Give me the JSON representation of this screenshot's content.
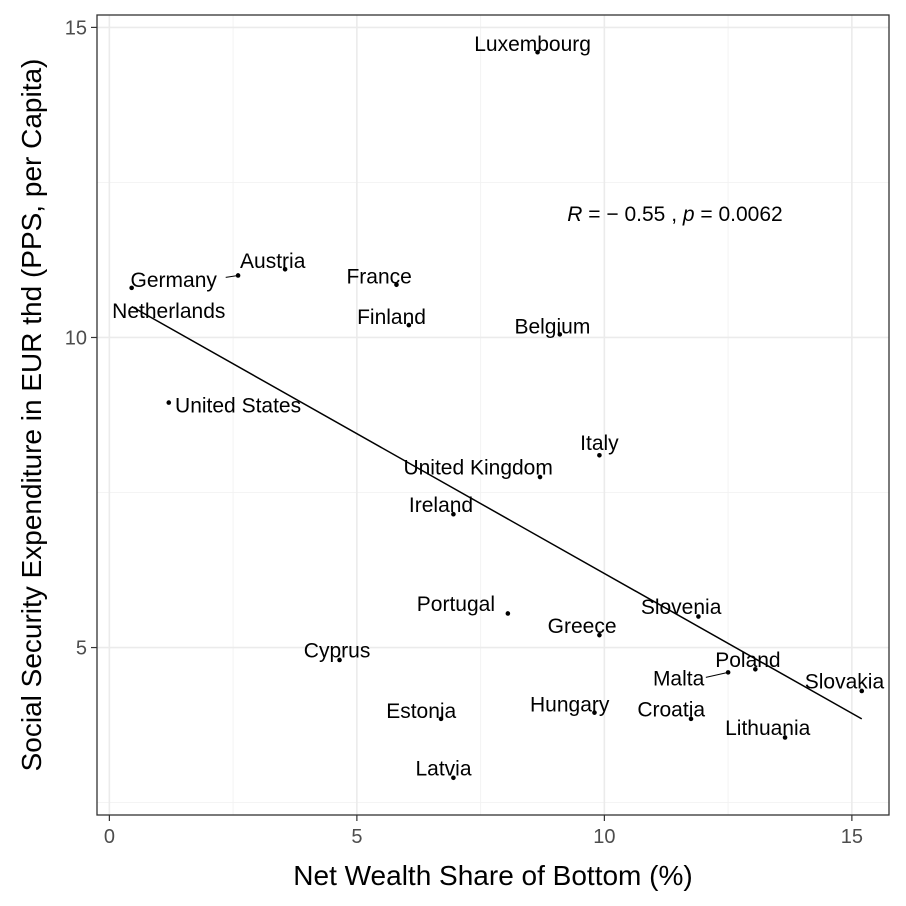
{
  "chart_data": {
    "type": "scatter",
    "xlabel": "Net Wealth Share of Bottom (%)",
    "ylabel": "Social Security Expenditure in EUR thd (PPS, per Capita)",
    "xlim": [
      -0.25,
      15.75
    ],
    "ylim": [
      2.3,
      15.2
    ],
    "x_ticks": [
      0,
      5,
      10,
      15
    ],
    "y_ticks": [
      5,
      10,
      15
    ],
    "x_tick_labels": [
      "0",
      "5",
      "10",
      "15"
    ],
    "y_tick_labels": [
      "5",
      "10",
      "15"
    ],
    "grid": true,
    "points": [
      {
        "label": "Luxembourg",
        "x": 8.65,
        "y": 14.6
      },
      {
        "label": "Austria",
        "x": 3.55,
        "y": 11.1
      },
      {
        "label": "Germany",
        "x": 2.6,
        "y": 11.0
      },
      {
        "label": "Netherlands",
        "x": 0.45,
        "y": 10.8
      },
      {
        "label": "France",
        "x": 5.8,
        "y": 10.85
      },
      {
        "label": "Finland",
        "x": 6.05,
        "y": 10.2
      },
      {
        "label": "Belgium",
        "x": 9.1,
        "y": 10.05
      },
      {
        "label": "United States",
        "x": 1.2,
        "y": 8.95
      },
      {
        "label": "Italy",
        "x": 9.9,
        "y": 8.1
      },
      {
        "label": "United Kingdom",
        "x": 8.7,
        "y": 7.75
      },
      {
        "label": "Ireland",
        "x": 6.95,
        "y": 7.15
      },
      {
        "label": "Portugal",
        "x": 8.05,
        "y": 5.55
      },
      {
        "label": "Slovenia",
        "x": 11.9,
        "y": 5.5
      },
      {
        "label": "Greece",
        "x": 9.9,
        "y": 5.2
      },
      {
        "label": "Cyprus",
        "x": 4.65,
        "y": 4.8
      },
      {
        "label": "Poland",
        "x": 13.05,
        "y": 4.65
      },
      {
        "label": "Malta",
        "x": 12.5,
        "y": 4.6
      },
      {
        "label": "Slovakia",
        "x": 15.2,
        "y": 4.3
      },
      {
        "label": "Estonia",
        "x": 6.7,
        "y": 3.85
      },
      {
        "label": "Hungary",
        "x": 9.8,
        "y": 3.95
      },
      {
        "label": "Croatia",
        "x": 11.75,
        "y": 3.85
      },
      {
        "label": "Lithuania",
        "x": 13.65,
        "y": 3.55
      },
      {
        "label": "Latvia",
        "x": 6.95,
        "y": 2.9
      }
    ],
    "fit_line": {
      "x": [
        0.45,
        15.2
      ],
      "y": [
        10.5,
        3.85
      ]
    },
    "annotation": {
      "R_symbol": "R",
      "R_value": " = − 0.55 , ",
      "p_symbol": "p",
      "p_value": " = 0.0062"
    }
  }
}
